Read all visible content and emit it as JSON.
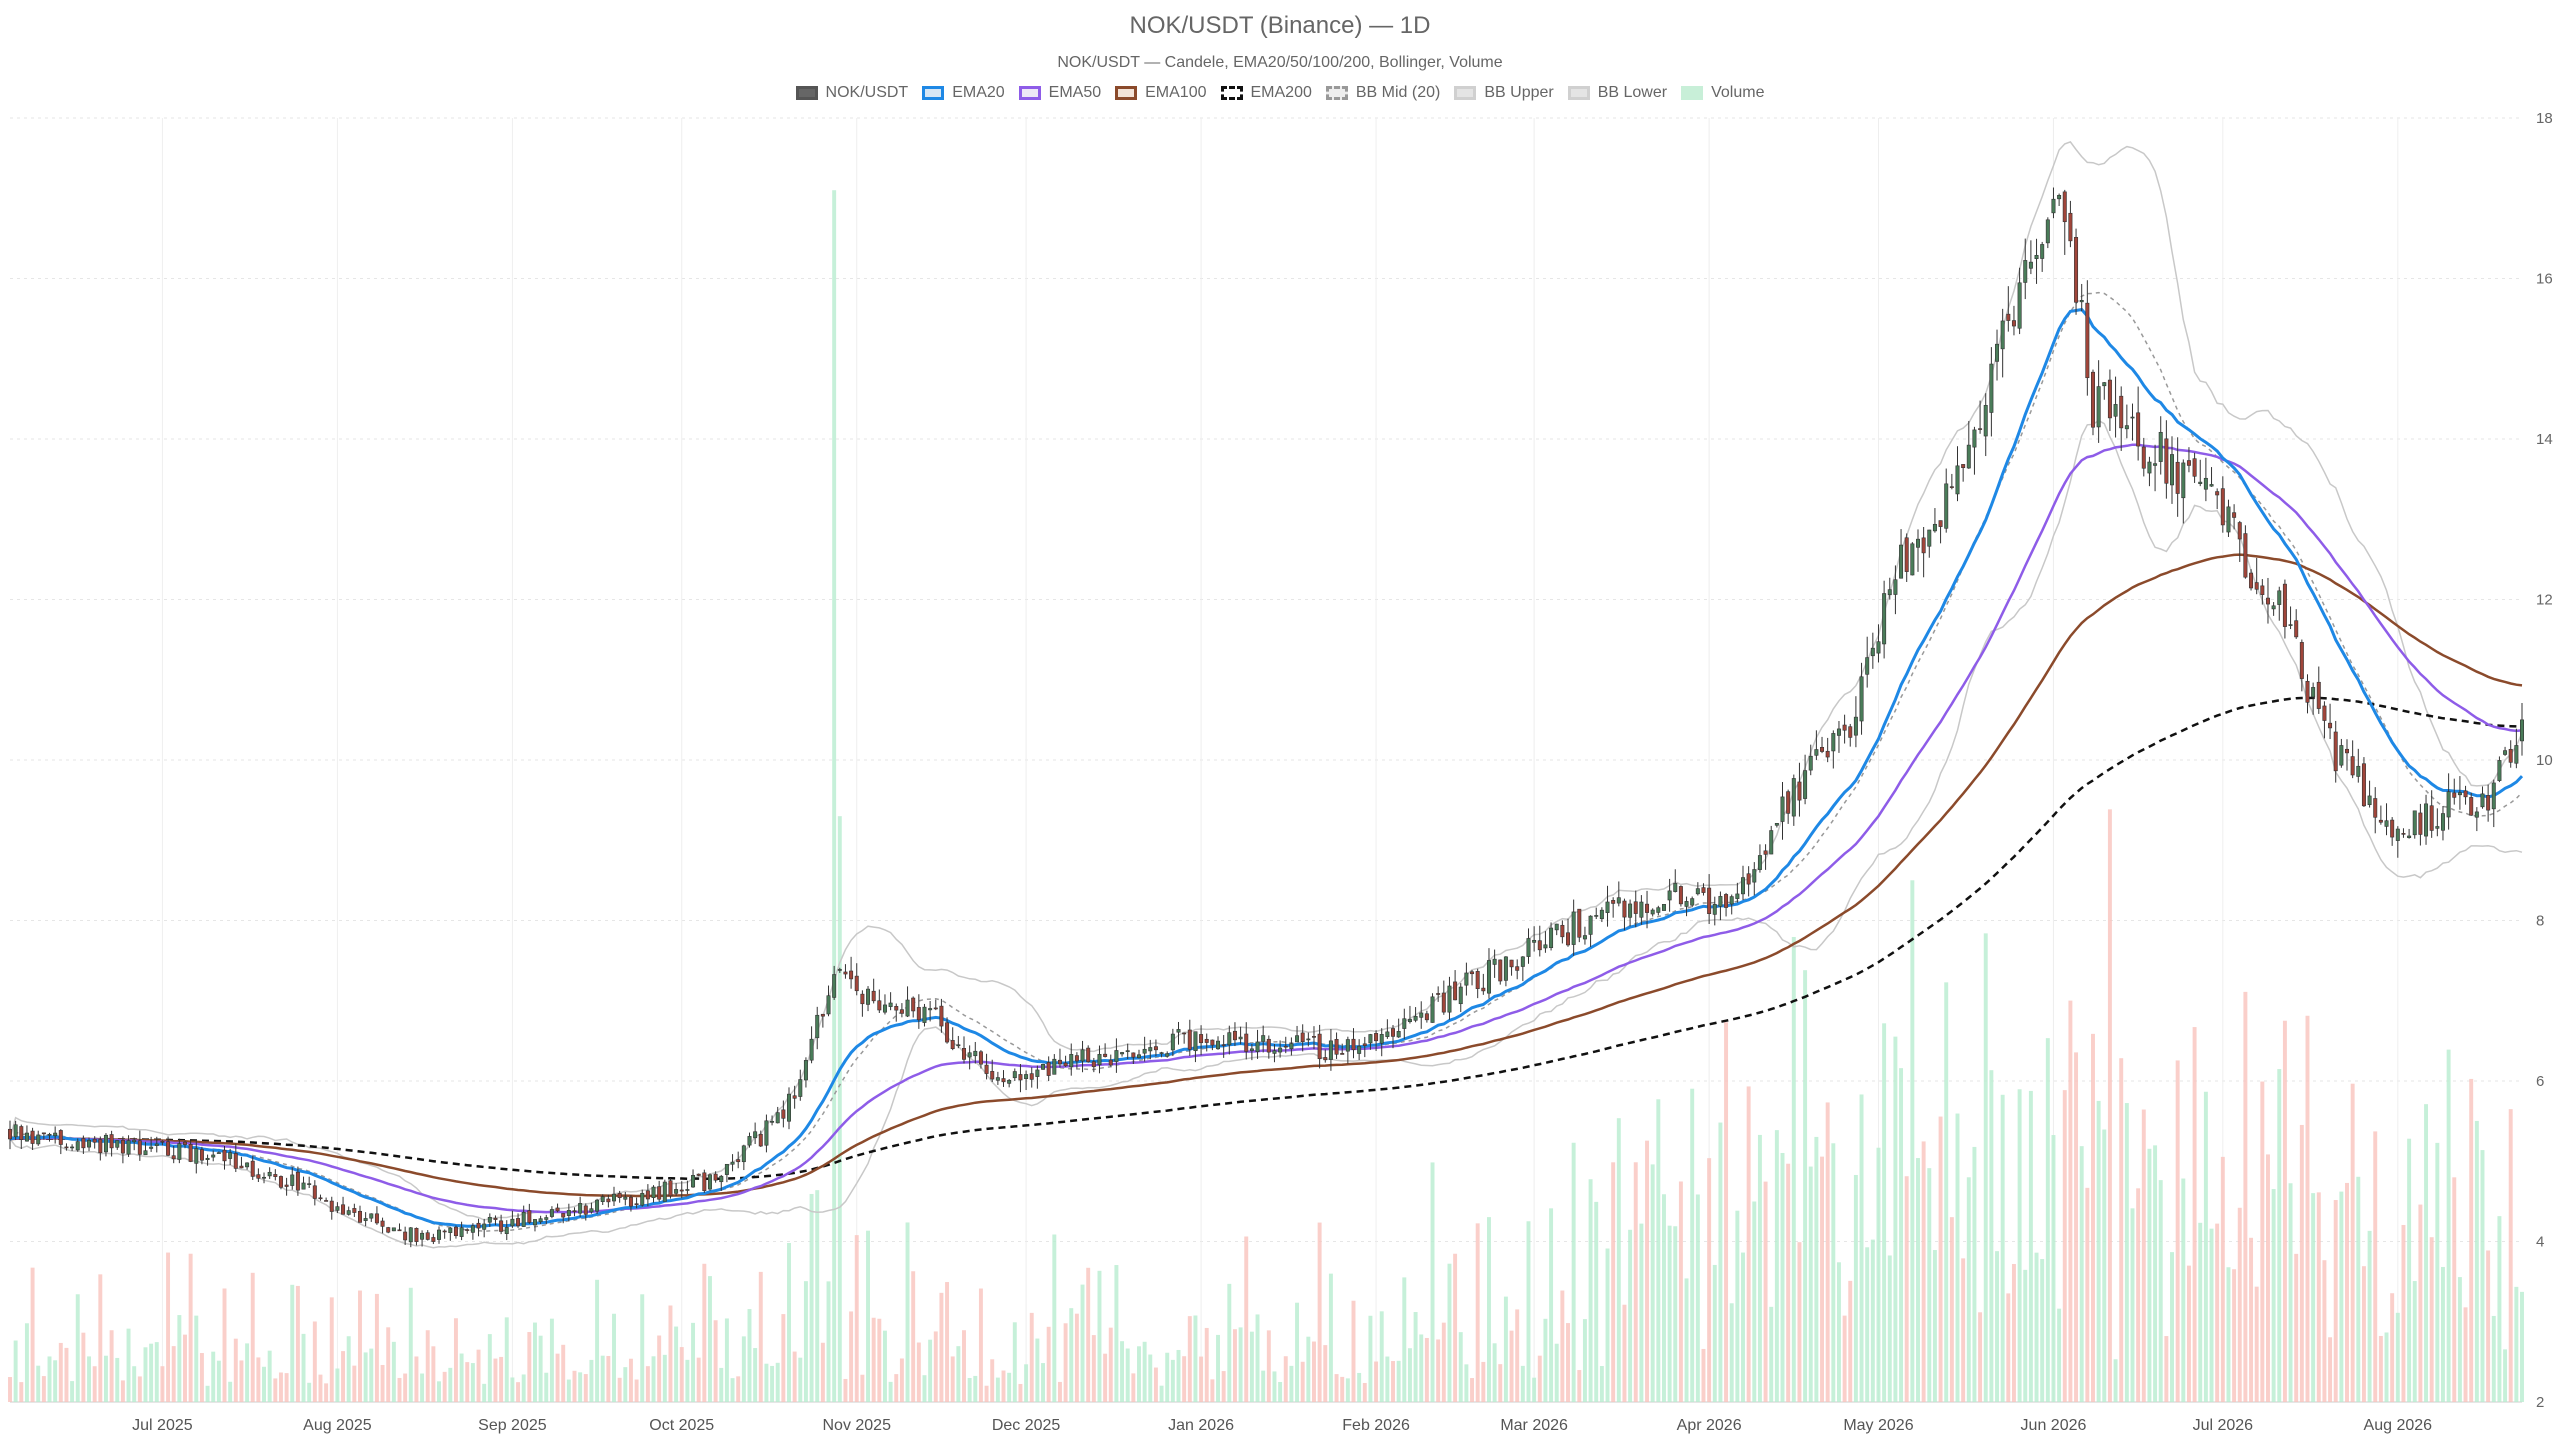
{
  "chart_data": {
    "type": "candlestick",
    "title": "NOK/USDT (Binance) — 1D",
    "subtitle": "NOK/USDT — Candele, EMA20/50/100/200, Bollinger, Volume",
    "legend": [
      {
        "label": "NOK/USDT",
        "fill": "#666666",
        "stroke": "#555555",
        "style": "solid"
      },
      {
        "label": "EMA20",
        "fill": "#d6e6f5",
        "stroke": "#1e88e5",
        "style": "solid"
      },
      {
        "label": "EMA50",
        "fill": "#ede7f6",
        "stroke": "#8e5ce8",
        "style": "solid"
      },
      {
        "label": "EMA100",
        "fill": "#f3e3d7",
        "stroke": "#8b4a2b",
        "style": "solid"
      },
      {
        "label": "EMA200",
        "fill": "#ffffff",
        "stroke": "#111111",
        "style": "dashed"
      },
      {
        "label": "BB Mid (20)",
        "fill": "#eeeeee",
        "stroke": "#999999",
        "style": "dashed"
      },
      {
        "label": "BB Upper",
        "fill": "#e4e4e4",
        "stroke": "#d0d0d0",
        "style": "solid"
      },
      {
        "label": "BB Lower",
        "fill": "#e4e4e4",
        "stroke": "#d0d0d0",
        "style": "solid"
      },
      {
        "label": "Volume",
        "fill": "#c8efd8",
        "stroke": "#c8efd8",
        "style": "solid"
      }
    ],
    "x_range": [
      "2025-06-04",
      "2026-08-23"
    ],
    "x_ticks": [
      {
        "date": "2025-07-01",
        "label": "Jul 2025"
      },
      {
        "date": "2025-08-01",
        "label": "Aug 2025"
      },
      {
        "date": "2025-09-01",
        "label": "Sep 2025"
      },
      {
        "date": "2025-10-01",
        "label": "Oct 2025"
      },
      {
        "date": "2025-11-01",
        "label": "Nov 2025"
      },
      {
        "date": "2025-12-01",
        "label": "Dec 2025"
      },
      {
        "date": "2026-01-01",
        "label": "Jan 2026"
      },
      {
        "date": "2026-02-01",
        "label": "Feb 2026"
      },
      {
        "date": "2026-03-01",
        "label": "Mar 2026"
      },
      {
        "date": "2026-04-01",
        "label": "Apr 2026"
      },
      {
        "date": "2026-05-01",
        "label": "May 2026"
      },
      {
        "date": "2026-06-01",
        "label": "Jun 2026"
      },
      {
        "date": "2026-07-01",
        "label": "Jul 2026"
      },
      {
        "date": "2026-08-01",
        "label": "Aug 2026"
      }
    ],
    "y_axis": {
      "position": "right",
      "min": 2,
      "max": 18,
      "ticks": [
        2,
        4,
        6,
        8,
        10,
        12,
        14,
        16,
        18
      ]
    },
    "grid": true,
    "legend_position": "top-center",
    "colors": {
      "up": "#4a7c59",
      "down": "#a0453a",
      "vol_up": "#b8ecd0",
      "vol_down": "#f9c3bd"
    },
    "price_anchors": [
      {
        "date": "2025-06-04",
        "close": 5.4
      },
      {
        "date": "2025-06-20",
        "close": 5.2
      },
      {
        "date": "2025-07-10",
        "close": 5.1
      },
      {
        "date": "2025-07-25",
        "close": 4.7
      },
      {
        "date": "2025-08-05",
        "close": 4.3
      },
      {
        "date": "2025-08-15",
        "close": 4.05
      },
      {
        "date": "2025-09-01",
        "close": 4.25
      },
      {
        "date": "2025-09-20",
        "close": 4.5
      },
      {
        "date": "2025-10-05",
        "close": 4.75
      },
      {
        "date": "2025-10-15",
        "close": 5.3
      },
      {
        "date": "2025-10-22",
        "close": 5.9
      },
      {
        "date": "2025-10-28",
        "close": 7.5
      },
      {
        "date": "2025-11-01",
        "close": 7.0
      },
      {
        "date": "2025-11-15",
        "close": 6.8
      },
      {
        "date": "2025-11-25",
        "close": 6.0
      },
      {
        "date": "2025-12-10",
        "close": 6.25
      },
      {
        "date": "2026-01-01",
        "close": 6.55
      },
      {
        "date": "2026-01-25",
        "close": 6.4
      },
      {
        "date": "2026-02-01",
        "close": 6.5
      },
      {
        "date": "2026-02-20",
        "close": 7.3
      },
      {
        "date": "2026-03-10",
        "close": 8.0
      },
      {
        "date": "2026-03-25",
        "close": 8.3
      },
      {
        "date": "2026-04-05",
        "close": 8.2
      },
      {
        "date": "2026-04-15",
        "close": 9.5
      },
      {
        "date": "2026-04-25",
        "close": 10.3
      },
      {
        "date": "2026-05-05",
        "close": 12.5
      },
      {
        "date": "2026-05-15",
        "close": 13.5
      },
      {
        "date": "2026-05-25",
        "close": 15.5
      },
      {
        "date": "2026-06-03",
        "close": 17.0
      },
      {
        "date": "2026-06-08",
        "close": 14.5
      },
      {
        "date": "2026-06-20",
        "close": 13.8
      },
      {
        "date": "2026-07-01",
        "close": 13.0
      },
      {
        "date": "2026-07-10",
        "close": 12.0
      },
      {
        "date": "2026-07-20",
        "close": 10.2
      },
      {
        "date": "2026-08-01",
        "close": 9.0
      },
      {
        "date": "2026-08-10",
        "close": 9.5
      },
      {
        "date": "2026-08-15",
        "close": 9.3
      },
      {
        "date": "2026-08-23",
        "close": 10.3
      }
    ],
    "volume_spikes": [
      {
        "date": "2025-10-28",
        "level": 17.1
      },
      {
        "date": "2025-10-29",
        "level": 9.3
      }
    ],
    "series_levels": {
      "ema200_start": 5.35,
      "ema200_end": 9.75
    }
  }
}
